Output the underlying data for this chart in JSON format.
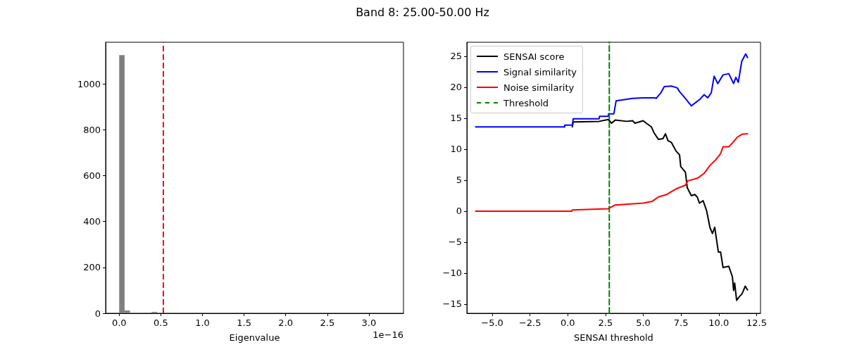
{
  "chart_data": [
    {
      "type": "histogram",
      "title": "Band 8: 25.00-50.00 Hz",
      "xlabel": "Eigenvalue",
      "annotations": [
        "1e−16"
      ],
      "color": "#808080",
      "bins": [
        0,
        0.065,
        0.13,
        0.195,
        0.26,
        0.325,
        0.39,
        0.455,
        0.52,
        0.585,
        0.65,
        0.715,
        0.78,
        0.845,
        0.91,
        0.975,
        1.04,
        1.105,
        1.17,
        1.235,
        1.3,
        1.365,
        1.43,
        1.495,
        1.56,
        1.625,
        1.69,
        1.755,
        1.82,
        1.885,
        1.95,
        2.015,
        2.08,
        2.145,
        2.21,
        2.275,
        2.34,
        2.405,
        2.47,
        2.535,
        2.6,
        2.665,
        2.73,
        2.795,
        2.86,
        2.925,
        2.99,
        3.055,
        3.12,
        3.185,
        3.25
      ],
      "values": [
        1125,
        12,
        3,
        0,
        3,
        3,
        6,
        3,
        0,
        0,
        0,
        0,
        0,
        0,
        0,
        0,
        0,
        0,
        0,
        0,
        0,
        0,
        0,
        0,
        0,
        0,
        0,
        0,
        0,
        0,
        0,
        0,
        0,
        0,
        0,
        0,
        0,
        2,
        0,
        0,
        0,
        0,
        0,
        0,
        0,
        0,
        0,
        0,
        0,
        0
      ],
      "xlim": [
        -0.163,
        3.415
      ],
      "xticks": [
        {
          "value": 0,
          "label": "0.0"
        },
        {
          "value": 0.5,
          "label": "0.5"
        },
        {
          "value": 1,
          "label": "1.0"
        },
        {
          "value": 1.5,
          "label": "1.5"
        },
        {
          "value": 2,
          "label": "2.0"
        },
        {
          "value": 2.5,
          "label": "2.5"
        },
        {
          "value": 3,
          "label": "3.0"
        }
      ],
      "ylim": [
        0,
        1181
      ],
      "yticks": [
        0,
        200,
        400,
        600,
        800,
        1000
      ],
      "ref_lines": [
        {
          "axis": "x",
          "value": 0.527,
          "color": "#ff0000",
          "line_style": "dashed"
        }
      ],
      "grid": false,
      "legend": false
    },
    {
      "type": "line",
      "xlabel": "SENSAI threshold",
      "legend": "top left",
      "grid": false,
      "marker": "none",
      "line_style": "solid",
      "xlim": [
        -6.68,
        12.76
      ],
      "xticks": [
        {
          "value": -5,
          "label": "−5.0"
        },
        {
          "value": -2.5,
          "label": "−2.5"
        },
        {
          "value": 0,
          "label": "0.0"
        },
        {
          "value": 2.5,
          "label": "2.5"
        },
        {
          "value": 5,
          "label": "5.0"
        },
        {
          "value": 7.5,
          "label": "7.5"
        },
        {
          "value": 10,
          "label": "10.0"
        },
        {
          "value": 12.5,
          "label": "12.5"
        }
      ],
      "ylim": [
        -16.48,
        27.27
      ],
      "yticks": [
        {
          "value": -15,
          "label": "−15"
        },
        {
          "value": -10,
          "label": "−10"
        },
        {
          "value": -5,
          "label": "−5"
        },
        0,
        5,
        10,
        15,
        20,
        25
      ],
      "series": [
        {
          "name": "SENSAI score",
          "color": "#000000",
          "x": [
            0.3,
            0.36,
            2.07,
            2.69,
            2.9,
            3.14,
            3.9,
            4.29,
            4.45,
            4.99,
            5.2,
            5.54,
            5.7,
            6.0,
            6.3,
            6.47,
            6.63,
            6.86,
            7.17,
            7.4,
            7.48,
            7.79,
            7.91,
            8.18,
            8.41,
            8.57,
            8.72,
            8.96,
            9.19,
            9.42,
            9.58,
            9.73,
            9.97,
            10.12,
            10.28,
            10.66,
            10.9,
            10.98,
            11.05,
            11.18,
            11.36,
            11.52,
            11.6,
            11.75,
            11.9
          ],
          "values": [
            13.6,
            14.4,
            14.5,
            14.8,
            14.2,
            14.7,
            14.5,
            14.6,
            14.2,
            14.6,
            14.2,
            13.6,
            12.7,
            11.6,
            11.7,
            12.5,
            11.4,
            11.1,
            9.7,
            9.1,
            7.2,
            6.3,
            3.8,
            2.5,
            2.7,
            2.3,
            1.3,
            1.7,
            0.1,
            -2.7,
            -3.6,
            -2.6,
            -6.6,
            -6.6,
            -9.1,
            -8.9,
            -10.6,
            -12.8,
            -11.6,
            -14.4,
            -13.8,
            -13.4,
            -13.0,
            -12.1,
            -12.7
          ]
        },
        {
          "name": "Signal similarity",
          "color": "#0000ff",
          "x": [
            -6.1,
            -0.21,
            -0.2,
            0.3,
            0.36,
            2.07,
            2.1,
            2.69,
            2.7,
            3.05,
            3.2,
            4.29,
            4.99,
            5.77,
            5.85,
            6.16,
            6.39,
            6.86,
            7.25,
            7.4,
            7.79,
            8.18,
            8.72,
            9.03,
            9.27,
            9.5,
            9.69,
            9.93,
            10.28,
            10.66,
            10.98,
            11.13,
            11.29,
            11.52,
            11.78,
            11.9
          ],
          "values": [
            13.6,
            13.6,
            13.9,
            13.9,
            14.9,
            14.9,
            15.3,
            15.3,
            15.7,
            15.7,
            17.8,
            18.2,
            18.3,
            18.3,
            18.2,
            19.1,
            20.1,
            20.2,
            19.9,
            19.3,
            18.2,
            17.0,
            18.0,
            18.8,
            18.3,
            19.1,
            21.8,
            20.6,
            22.0,
            22.2,
            20.6,
            21.6,
            20.8,
            24.2,
            25.4,
            24.8
          ]
        },
        {
          "name": "Noise similarity",
          "color": "#ff0000",
          "x": [
            -6.1,
            0.26,
            0.3,
            2.69,
            3.14,
            4.99,
            5.6,
            6.0,
            6.55,
            7.17,
            7.79,
            7.95,
            8.57,
            9.03,
            9.42,
            9.8,
            10.12,
            10.28,
            10.66,
            10.9,
            11.2,
            11.52,
            11.9
          ],
          "values": [
            0,
            0,
            0.2,
            0.4,
            1.0,
            1.3,
            1.6,
            2.3,
            2.7,
            3.6,
            4.2,
            4.9,
            5.3,
            6.1,
            7.4,
            8.3,
            9.3,
            10.4,
            10.4,
            11.0,
            11.9,
            12.4,
            12.5
          ]
        },
        {
          "name": "Threshold",
          "color": "#008000",
          "line_style": "dashed",
          "x": [
            2.75,
            2.75
          ],
          "values": [
            -16.48,
            27.27
          ]
        }
      ]
    }
  ]
}
